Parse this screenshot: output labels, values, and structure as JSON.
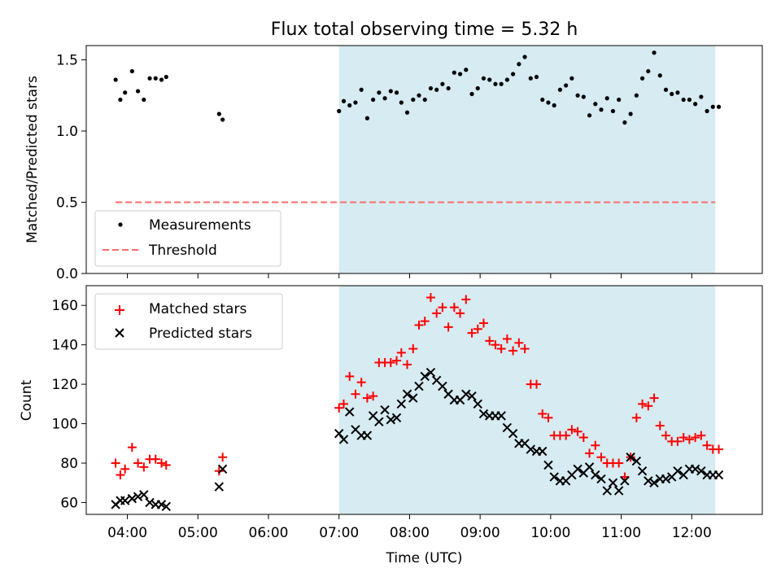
{
  "figure": {
    "title": "Flux total observing time = 5.32 h",
    "xlabel": "Time (UTC)"
  },
  "chart_data": [
    {
      "type": "scatter",
      "ylabel": "Matched/Predicted stars",
      "xlim": [
        "03:25",
        "13:00"
      ],
      "ylim": [
        0,
        1.6
      ],
      "yticks": [
        0.0,
        0.5,
        1.0,
        1.5
      ],
      "ytick_labels": [
        "0.0",
        "0.5",
        "1.0",
        "1.5"
      ],
      "shaded_region": {
        "x_start": "07:00",
        "x_end": "12:20",
        "color": "#add8e6"
      },
      "legend": {
        "position": "lower-left",
        "entries": [
          "Measurements",
          "Threshold"
        ]
      },
      "threshold": {
        "name": "Threshold",
        "value": 0.5,
        "x_start": "03:50",
        "x_end": "12:20",
        "color": "#ff6b6b",
        "style": "dashed"
      },
      "series": [
        {
          "name": "Measurements",
          "color": "#000000",
          "marker": "dot",
          "x": [
            "03:50",
            "03:54",
            "03:58",
            "04:04",
            "04:09",
            "04:14",
            "04:19",
            "04:24",
            "04:29",
            "04:33",
            "05:18",
            "05:21",
            "07:00",
            "07:04",
            "07:09",
            "07:14",
            "07:19",
            "07:24",
            "07:29",
            "07:34",
            "07:39",
            "07:44",
            "07:49",
            "07:53",
            "07:58",
            "08:03",
            "08:08",
            "08:13",
            "08:18",
            "08:23",
            "08:28",
            "08:33",
            "08:38",
            "08:43",
            "08:48",
            "08:53",
            "08:58",
            "09:03",
            "09:08",
            "09:13",
            "09:18",
            "09:23",
            "09:28",
            "09:33",
            "09:38",
            "09:43",
            "09:48",
            "09:53",
            "09:58",
            "10:03",
            "10:08",
            "10:13",
            "10:18",
            "10:23",
            "10:28",
            "10:33",
            "10:38",
            "10:43",
            "10:48",
            "10:53",
            "10:58",
            "11:03",
            "11:08",
            "11:13",
            "11:18",
            "11:23",
            "11:28",
            "11:33",
            "11:38",
            "11:43",
            "11:48",
            "11:53",
            "11:58",
            "12:03",
            "12:08",
            "12:13",
            "12:18",
            "12:23"
          ],
          "y": [
            1.36,
            1.22,
            1.27,
            1.42,
            1.28,
            1.22,
            1.37,
            1.37,
            1.36,
            1.38,
            1.12,
            1.08,
            1.14,
            1.21,
            1.18,
            1.2,
            1.29,
            1.09,
            1.22,
            1.27,
            1.23,
            1.28,
            1.27,
            1.2,
            1.13,
            1.22,
            1.25,
            1.22,
            1.3,
            1.29,
            1.33,
            1.3,
            1.41,
            1.4,
            1.43,
            1.26,
            1.3,
            1.37,
            1.36,
            1.33,
            1.33,
            1.36,
            1.4,
            1.47,
            1.52,
            1.37,
            1.38,
            1.22,
            1.2,
            1.18,
            1.29,
            1.32,
            1.37,
            1.25,
            1.24,
            1.11,
            1.19,
            1.15,
            1.23,
            1.14,
            1.22,
            1.06,
            1.12,
            1.25,
            1.37,
            1.42,
            1.55,
            1.39,
            1.29,
            1.26,
            1.27,
            1.22,
            1.22,
            1.19,
            1.24,
            1.14,
            1.17,
            1.17
          ]
        }
      ]
    },
    {
      "type": "scatter",
      "ylabel": "Count",
      "xlim": [
        "03:25",
        "13:00"
      ],
      "ylim": [
        54,
        170
      ],
      "yticks": [
        60,
        80,
        100,
        120,
        140,
        160
      ],
      "ytick_labels": [
        "60",
        "80",
        "100",
        "120",
        "140",
        "160"
      ],
      "xticks": [
        "04:00",
        "05:00",
        "06:00",
        "07:00",
        "08:00",
        "09:00",
        "10:00",
        "11:00",
        "12:00"
      ],
      "xtick_labels": [
        "04:00",
        "05:00",
        "06:00",
        "07:00",
        "08:00",
        "09:00",
        "10:00",
        "11:00",
        "12:00"
      ],
      "shaded_region": {
        "x_start": "07:00",
        "x_end": "12:20",
        "color": "#add8e6"
      },
      "legend": {
        "position": "upper-left",
        "entries": [
          "Matched stars",
          "Predicted stars"
        ]
      },
      "series": [
        {
          "name": "Matched stars",
          "color": "#ff0000",
          "marker": "plus",
          "x": [
            "03:50",
            "03:54",
            "03:58",
            "04:04",
            "04:09",
            "04:14",
            "04:19",
            "04:24",
            "04:29",
            "04:33",
            "05:18",
            "05:21",
            "07:00",
            "07:04",
            "07:09",
            "07:14",
            "07:19",
            "07:24",
            "07:29",
            "07:34",
            "07:39",
            "07:44",
            "07:49",
            "07:53",
            "07:58",
            "08:03",
            "08:08",
            "08:13",
            "08:18",
            "08:23",
            "08:28",
            "08:33",
            "08:38",
            "08:43",
            "08:48",
            "08:53",
            "08:58",
            "09:03",
            "09:08",
            "09:13",
            "09:18",
            "09:23",
            "09:28",
            "09:33",
            "09:38",
            "09:43",
            "09:48",
            "09:53",
            "09:58",
            "10:03",
            "10:08",
            "10:13",
            "10:18",
            "10:23",
            "10:28",
            "10:33",
            "10:38",
            "10:43",
            "10:48",
            "10:53",
            "10:58",
            "11:03",
            "11:08",
            "11:13",
            "11:18",
            "11:23",
            "11:28",
            "11:33",
            "11:38",
            "11:43",
            "11:48",
            "11:53",
            "11:58",
            "12:03",
            "12:08",
            "12:13",
            "12:18",
            "12:23"
          ],
          "y": [
            80,
            74,
            77,
            88,
            80,
            78,
            82,
            82,
            80,
            79,
            76,
            83,
            108,
            110,
            124,
            115,
            121,
            113,
            114,
            131,
            131,
            131,
            132,
            136,
            130,
            138,
            150,
            152,
            164,
            156,
            159,
            149,
            159,
            156,
            163,
            146,
            148,
            151,
            142,
            140,
            138,
            143,
            137,
            141,
            138,
            120,
            120,
            105,
            103,
            94,
            94,
            94,
            97,
            96,
            93,
            85,
            89,
            83,
            80,
            80,
            80,
            73,
            83,
            103,
            110,
            109,
            113,
            99,
            94,
            91,
            91,
            93,
            92,
            93,
            94,
            89,
            87,
            87
          ]
        },
        {
          "name": "Predicted stars",
          "color": "#000000",
          "marker": "x",
          "x": [
            "03:50",
            "03:54",
            "03:58",
            "04:04",
            "04:09",
            "04:14",
            "04:19",
            "04:24",
            "04:29",
            "04:33",
            "05:18",
            "05:21",
            "07:00",
            "07:04",
            "07:09",
            "07:14",
            "07:19",
            "07:24",
            "07:29",
            "07:34",
            "07:39",
            "07:44",
            "07:49",
            "07:53",
            "07:58",
            "08:03",
            "08:08",
            "08:13",
            "08:18",
            "08:23",
            "08:28",
            "08:33",
            "08:38",
            "08:43",
            "08:48",
            "08:53",
            "08:58",
            "09:03",
            "09:08",
            "09:13",
            "09:18",
            "09:23",
            "09:28",
            "09:33",
            "09:38",
            "09:43",
            "09:48",
            "09:53",
            "09:58",
            "10:03",
            "10:08",
            "10:13",
            "10:18",
            "10:23",
            "10:28",
            "10:33",
            "10:38",
            "10:43",
            "10:48",
            "10:53",
            "10:58",
            "11:03",
            "11:08",
            "11:13",
            "11:18",
            "11:23",
            "11:28",
            "11:33",
            "11:38",
            "11:43",
            "11:48",
            "11:53",
            "11:58",
            "12:03",
            "12:08",
            "12:13",
            "12:18",
            "12:23"
          ],
          "y": [
            59,
            61,
            61,
            62,
            63,
            64,
            60,
            59,
            59,
            58,
            68,
            77,
            95,
            92,
            106,
            97,
            94,
            94,
            104,
            101,
            107,
            102,
            103,
            110,
            115,
            113,
            119,
            124,
            126,
            122,
            119,
            115,
            112,
            112,
            115,
            114,
            110,
            105,
            104,
            104,
            104,
            98,
            95,
            90,
            90,
            87,
            86,
            86,
            79,
            73,
            71,
            71,
            74,
            77,
            75,
            78,
            74,
            72,
            66,
            70,
            66,
            71,
            83,
            81,
            76,
            71,
            70,
            72,
            72,
            73,
            76,
            74,
            77,
            77,
            76,
            74,
            74,
            74
          ]
        }
      ]
    }
  ]
}
